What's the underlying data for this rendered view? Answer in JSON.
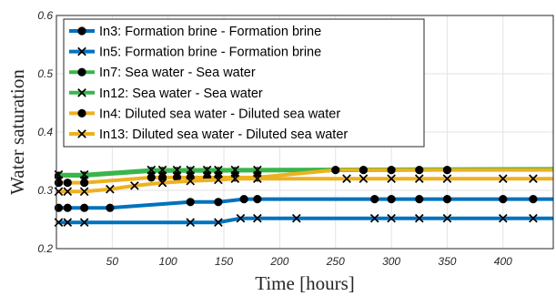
{
  "chart_data": {
    "type": "line",
    "title": "",
    "xlabel": "Time [hours]",
    "ylabel": "Water saturation",
    "xlim": [
      0,
      445
    ],
    "ylim": [
      0.2,
      0.6
    ],
    "xticks": [
      50,
      100,
      150,
      200,
      250,
      300,
      350,
      400
    ],
    "yticks": [
      0.2,
      0.3,
      0.4,
      0.5,
      0.6
    ],
    "ytick_labels": [
      "0.2",
      "0.3",
      "0.4",
      "0.5",
      "0.6"
    ],
    "grid": true,
    "legend_position": "top-left",
    "series": [
      {
        "name": "In3: Formation brine - Formation brine",
        "color": "#0072BD",
        "marker": "circle",
        "x": [
          2,
          10,
          25,
          48,
          120,
          145,
          168,
          180,
          215,
          285,
          300,
          325,
          350,
          400,
          445
        ],
        "y": [
          0.27,
          0.27,
          0.27,
          0.27,
          0.28,
          0.28,
          0.285,
          0.285,
          0.285,
          0.285,
          0.285,
          0.285,
          0.285,
          0.285,
          0.285
        ],
        "marker_x": [
          2,
          10,
          25,
          48,
          120,
          145,
          168,
          180,
          285,
          300,
          325,
          350,
          400,
          427
        ],
        "marker_y": [
          0.27,
          0.27,
          0.27,
          0.27,
          0.28,
          0.28,
          0.285,
          0.285,
          0.285,
          0.285,
          0.285,
          0.285,
          0.285,
          0.285
        ]
      },
      {
        "name": "In5: Formation brine - Formation brine",
        "color": "#0072BD",
        "marker": "x",
        "x": [
          2,
          10,
          25,
          120,
          145,
          165,
          180,
          215,
          445
        ],
        "y": [
          0.245,
          0.245,
          0.245,
          0.245,
          0.245,
          0.252,
          0.252,
          0.252,
          0.252
        ],
        "marker_x": [
          2,
          10,
          25,
          120,
          145,
          165,
          180,
          215,
          285,
          300,
          325,
          350,
          400,
          427
        ],
        "marker_y": [
          0.245,
          0.245,
          0.245,
          0.245,
          0.245,
          0.252,
          0.252,
          0.252,
          0.252,
          0.252,
          0.252,
          0.252,
          0.252,
          0.252
        ]
      },
      {
        "name": "In7: Sea water - Sea water",
        "color": "#3AB54A",
        "marker": "circle",
        "x": [
          2,
          25,
          85,
          445
        ],
        "y": [
          0.325,
          0.325,
          0.333,
          0.336
        ],
        "marker_x": [
          2,
          25,
          85,
          95,
          108,
          120,
          135,
          145,
          160,
          180
        ],
        "marker_y": [
          0.325,
          0.325,
          0.333,
          0.333,
          0.333,
          0.333,
          0.333,
          0.333,
          0.333,
          0.333
        ]
      },
      {
        "name": "In12: Sea water - Sea water",
        "color": "#3AB54A",
        "marker": "x",
        "x": [
          2,
          25,
          85,
          445
        ],
        "y": [
          0.327,
          0.327,
          0.335,
          0.337
        ],
        "marker_x": [
          2,
          25,
          85,
          95,
          108,
          120,
          135,
          145,
          160,
          180
        ],
        "marker_y": [
          0.327,
          0.327,
          0.335,
          0.335,
          0.335,
          0.335,
          0.335,
          0.335,
          0.335,
          0.335
        ]
      },
      {
        "name": "In4: Diluted sea water -  Diluted sea water",
        "color": "#EDB120",
        "marker": "circle",
        "x": [
          2,
          25,
          85,
          160,
          180,
          250,
          445
        ],
        "y": [
          0.313,
          0.313,
          0.322,
          0.322,
          0.322,
          0.335,
          0.335
        ],
        "marker_x": [
          2,
          10,
          25,
          85,
          95,
          108,
          120,
          135,
          145,
          160,
          180,
          250,
          275,
          300,
          325,
          350
        ],
        "marker_y": [
          0.313,
          0.313,
          0.313,
          0.322,
          0.322,
          0.322,
          0.322,
          0.322,
          0.322,
          0.322,
          0.322,
          0.335,
          0.335,
          0.335,
          0.335,
          0.335
        ]
      },
      {
        "name": "In13: Diluted sea water -  Diluted sea water",
        "color": "#EDB120",
        "marker": "x",
        "x": [
          2,
          25,
          48,
          70,
          95,
          120,
          145,
          160,
          180,
          260,
          445
        ],
        "y": [
          0.298,
          0.298,
          0.302,
          0.308,
          0.313,
          0.316,
          0.318,
          0.32,
          0.32,
          0.32,
          0.32
        ],
        "marker_x": [
          2,
          10,
          25,
          48,
          70,
          95,
          120,
          145,
          160,
          180,
          260,
          275,
          300,
          325,
          350,
          400,
          427
        ],
        "marker_y": [
          0.298,
          0.298,
          0.298,
          0.302,
          0.308,
          0.313,
          0.316,
          0.318,
          0.32,
          0.32,
          0.32,
          0.32,
          0.32,
          0.32,
          0.32,
          0.32,
          0.32
        ]
      }
    ]
  }
}
